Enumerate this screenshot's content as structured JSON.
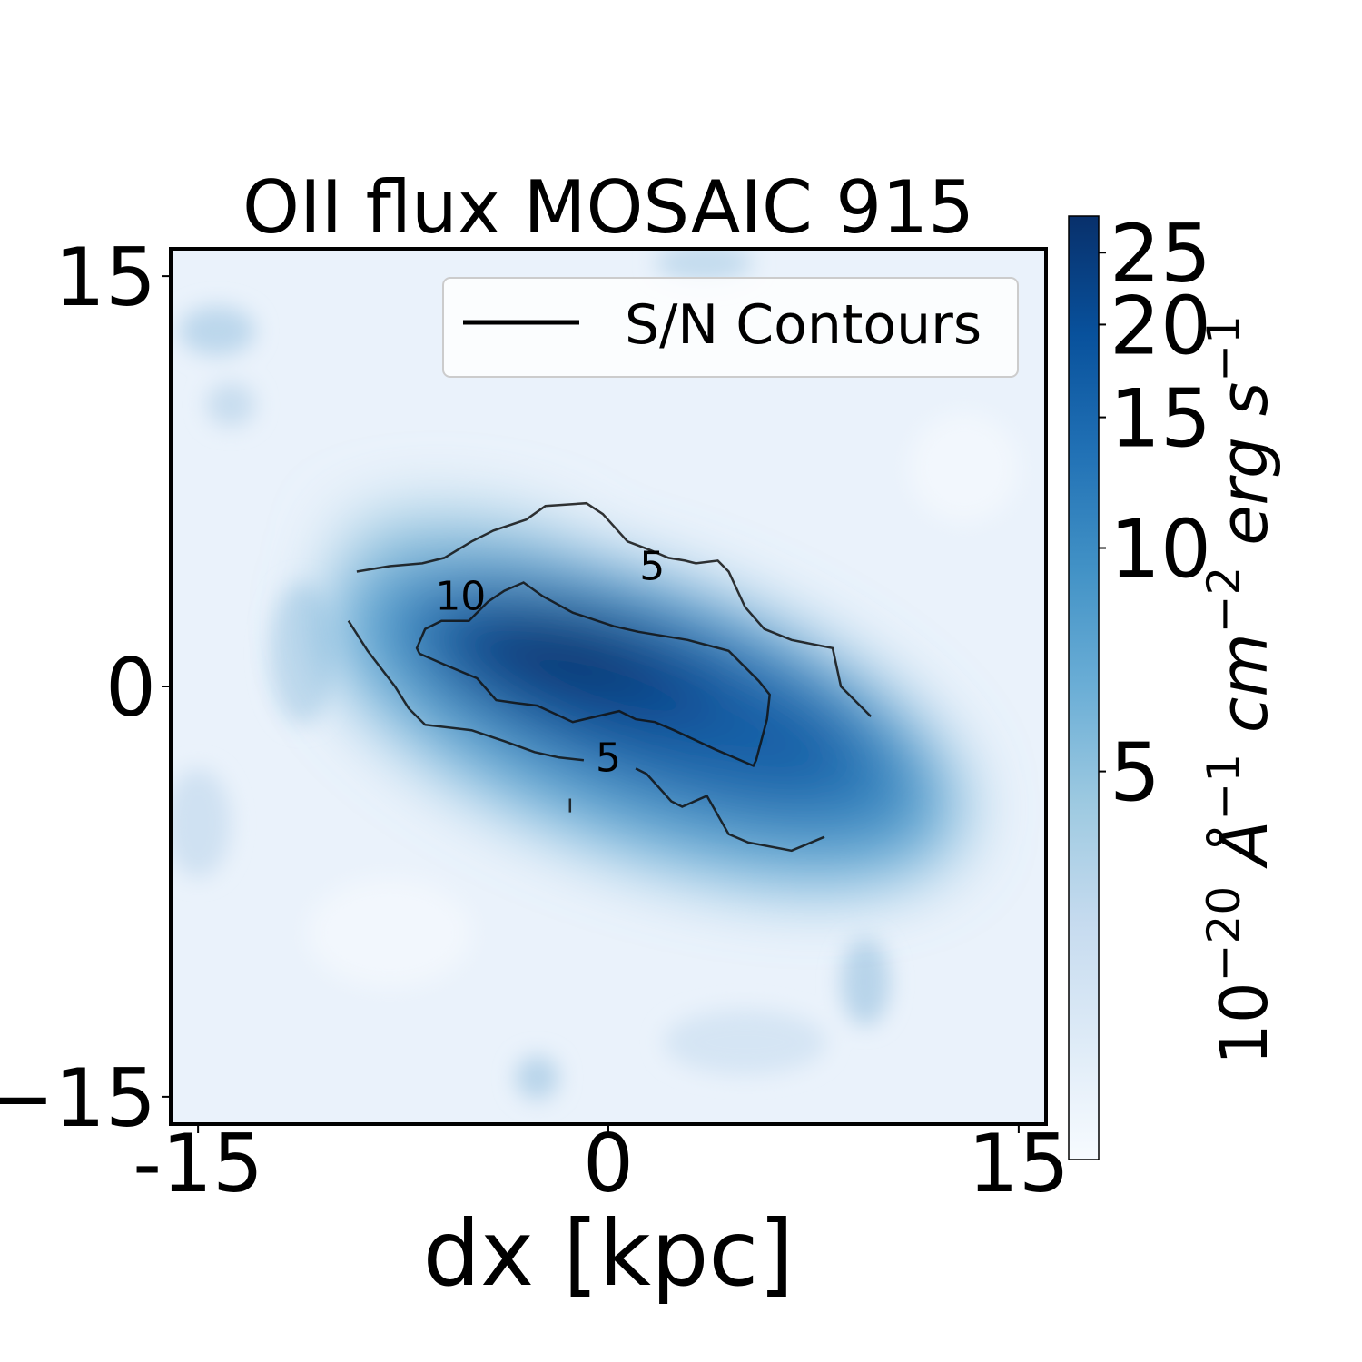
{
  "chart_data": {
    "type": "heatmap",
    "title": "OII flux MOSAIC 915",
    "xlabel": "dx [kpc]",
    "ylabel": "",
    "xlim": [
      -16,
      16
    ],
    "ylim": [
      -16,
      16
    ],
    "x_ticks": [
      {
        "value": -15,
        "label": "-15"
      },
      {
        "value": 0,
        "label": "0"
      },
      {
        "value": 15,
        "label": "15"
      }
    ],
    "y_ticks": [
      {
        "value": 15,
        "label": "15"
      },
      {
        "value": 0,
        "label": "0"
      },
      {
        "value": -15,
        "label": "−15"
      }
    ],
    "grid": false,
    "colormap": "Blues",
    "colorbar": {
      "label_base": "10",
      "label_exp": "−20",
      "label_units": [
        {
          "text": " Å",
          "sup": "−1"
        },
        {
          "text": " cm",
          "sup": "−2"
        },
        {
          "text": " erg s",
          "sup": "−1"
        }
      ],
      "scale": "log",
      "range": [
        1.5,
        28
      ],
      "ticks": [
        {
          "value": 5,
          "label": "5"
        },
        {
          "value": 10,
          "label": "10"
        },
        {
          "value": 15,
          "label": "15"
        },
        {
          "value": 20,
          "label": "20"
        },
        {
          "value": 25,
          "label": "25"
        }
      ]
    },
    "colors": [
      "#f7fbff",
      "#deebf7",
      "#c6dbef",
      "#9ecae1",
      "#6baed6",
      "#4292c6",
      "#2171b5",
      "#08519c",
      "#08306b"
    ],
    "emission_peak": {
      "x": -1.5,
      "y": 1.2,
      "value": 28
    },
    "legend": {
      "placement": "top-right",
      "entries": [
        {
          "label": "S/N Contours",
          "color": "#000000"
        }
      ]
    },
    "contours": [
      {
        "level": 5,
        "label_text": "5",
        "segments": [
          [
            [
              -9.2,
              4.2
            ],
            [
              -8.0,
              4.4
            ],
            [
              -6.8,
              4.5
            ],
            [
              -6.0,
              4.7
            ],
            [
              -5.0,
              5.3
            ],
            [
              -4.2,
              5.7
            ],
            [
              -3.0,
              6.1
            ],
            [
              -2.3,
              6.6
            ],
            [
              -0.8,
              6.7
            ],
            [
              -0.2,
              6.3
            ],
            [
              0.7,
              5.3
            ],
            [
              1.5,
              5.0
            ],
            [
              2.2,
              4.7
            ],
            [
              2.8,
              4.6
            ],
            [
              3.2,
              4.5
            ],
            [
              4.0,
              4.6
            ],
            [
              4.4,
              4.2
            ],
            [
              5.0,
              2.9
            ],
            [
              5.7,
              2.1
            ],
            [
              6.7,
              1.7
            ],
            [
              8.2,
              1.4
            ],
            [
              8.5,
              0.0
            ],
            [
              9.6,
              -1.1
            ]
          ],
          [
            [
              -9.5,
              2.4
            ],
            [
              -8.8,
              1.3
            ],
            [
              -7.8,
              0.0
            ],
            [
              -7.3,
              -0.8
            ],
            [
              -6.7,
              -1.4
            ],
            [
              -5.0,
              -1.6
            ],
            [
              -3.8,
              -2.0
            ],
            [
              -2.7,
              -2.4
            ],
            [
              -1.8,
              -2.6
            ],
            [
              -0.9,
              -2.7
            ]
          ],
          [
            [
              1.0,
              -3.0
            ],
            [
              1.4,
              -3.2
            ],
            [
              2.3,
              -4.2
            ],
            [
              2.7,
              -4.4
            ],
            [
              3.6,
              -4.0
            ],
            [
              4.4,
              -5.4
            ],
            [
              5.1,
              -5.7
            ],
            [
              6.7,
              -6.0
            ],
            [
              7.9,
              -5.5
            ]
          ],
          [
            [
              -1.4,
              -4.1
            ],
            [
              -1.4,
              -4.6
            ]
          ]
        ],
        "labels": [
          {
            "x": 1.6,
            "y": 4.3
          },
          {
            "x": 0.0,
            "y": -2.7
          }
        ]
      },
      {
        "level": 10,
        "label_text": "10",
        "segments": [
          [
            [
              -5.8,
              2.4
            ],
            [
              -5.1,
              2.4
            ],
            [
              -4.4,
              3.1
            ],
            [
              -3.8,
              3.5
            ],
            [
              -3.1,
              3.8
            ],
            [
              -2.4,
              3.3
            ],
            [
              -1.3,
              2.7
            ],
            [
              0.2,
              2.2
            ],
            [
              1.1,
              2.0
            ],
            [
              2.9,
              1.7
            ],
            [
              4.4,
              1.3
            ],
            [
              5.5,
              0.2
            ],
            [
              5.9,
              -0.3
            ],
            [
              5.8,
              -1.2
            ],
            [
              5.4,
              -2.7
            ],
            [
              5.3,
              -2.9
            ],
            [
              3.9,
              -2.3
            ],
            [
              2.4,
              -1.6
            ],
            [
              1.7,
              -1.3
            ],
            [
              1.0,
              -1.2
            ],
            [
              0.4,
              -0.9
            ],
            [
              -1.3,
              -1.3
            ],
            [
              -2.6,
              -0.7
            ],
            [
              -3.4,
              -0.6
            ],
            [
              -4.1,
              -0.5
            ],
            [
              -4.8,
              0.3
            ],
            [
              -6.0,
              0.8
            ],
            [
              -6.9,
              1.2
            ],
            [
              -7.0,
              1.4
            ],
            [
              -6.7,
              2.1
            ],
            [
              -6.1,
              2.4
            ],
            [
              -5.8,
              2.4
            ]
          ]
        ],
        "labels": [
          {
            "x": -5.4,
            "y": 3.2
          }
        ]
      }
    ]
  }
}
